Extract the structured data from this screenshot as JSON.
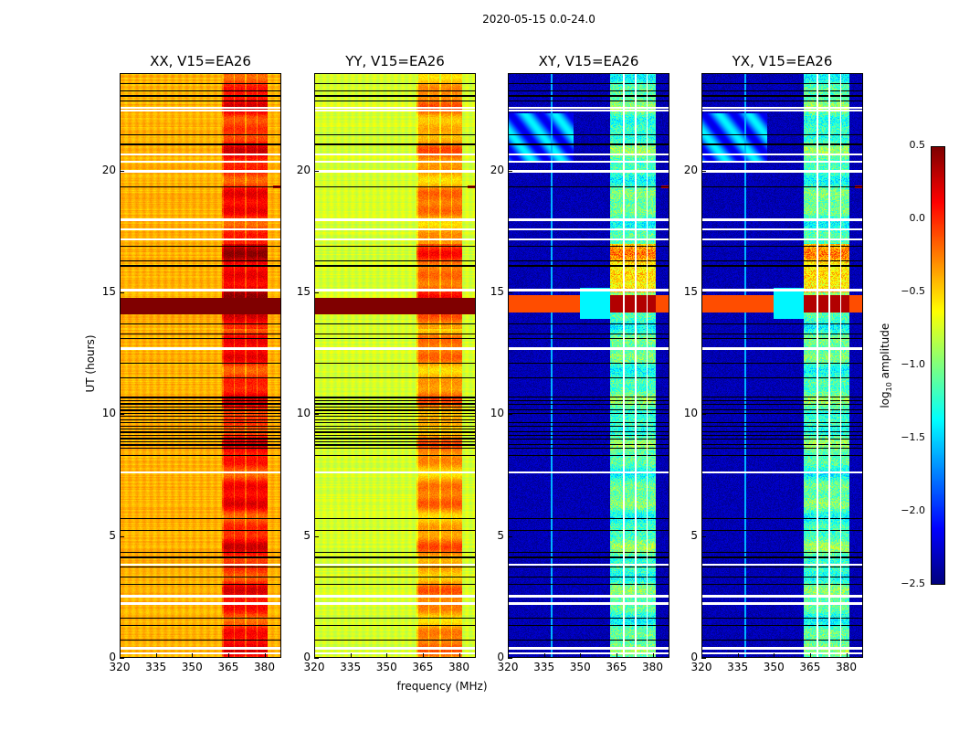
{
  "chart_data": {
    "type": "heatmap",
    "title": "2020-05-15 0.0-24.0",
    "xlabel": "frequency (MHz)",
    "ylabel": "UT (hours)",
    "xlim": [
      320,
      387
    ],
    "ylim": [
      0,
      24
    ],
    "xticks": [
      320,
      335,
      350,
      365,
      380
    ],
    "yticks": [
      0,
      5,
      10,
      15,
      20
    ],
    "colorbar": {
      "label_prefix": "log",
      "label_sub": "10",
      "label_suffix": " amplitude",
      "colormap": "jet",
      "range": [
        -2.5,
        0.5
      ],
      "ticks": [
        "0.5",
        "0.0",
        "−0.5",
        "−1.0",
        "−1.5",
        "−2.0",
        "−2.5"
      ],
      "tick_values": [
        0.5,
        0.0,
        -0.5,
        -1.0,
        -1.5,
        -2.0,
        -2.5
      ]
    },
    "panels": [
      {
        "title": "XX, V15=EA26",
        "baseline": -0.4,
        "band_level": 0.05,
        "band_mhz": [
          362.5,
          381.5
        ]
      },
      {
        "title": "YY, V15=EA26",
        "baseline": -0.75,
        "band_level": -0.3,
        "band_mhz": [
          362.5,
          381.5
        ]
      },
      {
        "title": "XY, V15=EA26",
        "baseline": -2.35,
        "band_level": -1.15,
        "band_mhz": [
          362.5,
          381.5
        ]
      },
      {
        "title": "YX, V15=EA26",
        "baseline": -2.35,
        "band_level": -1.15,
        "band_mhz": [
          362.5,
          381.5
        ]
      }
    ],
    "flagged_hours": [
      0.15,
      0.35,
      2.2,
      15.1,
      20.4,
      20.7,
      22.5,
      22.6
    ],
    "high_rfi_hours": [
      14.1,
      14.8
    ]
  }
}
